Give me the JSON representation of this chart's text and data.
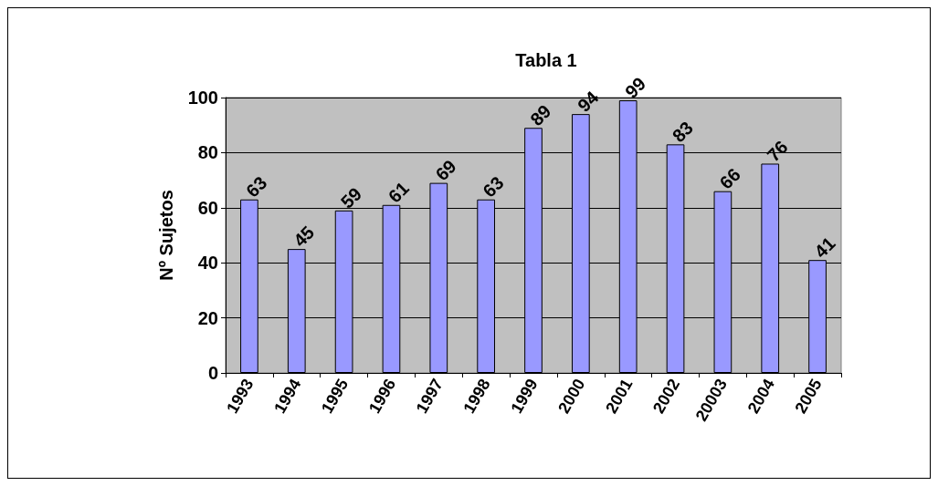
{
  "chart_data": {
    "type": "bar",
    "title": "Tabla 1",
    "ylabel": "Nº Sujetos",
    "categories": [
      "1993",
      "1994",
      "1995",
      "1996",
      "1997",
      "1998",
      "1999",
      "2000",
      "2001",
      "2002",
      "20003",
      "2004",
      "2005"
    ],
    "values": [
      63,
      45,
      59,
      61,
      69,
      63,
      89,
      94,
      99,
      83,
      66,
      76,
      41
    ],
    "color": "#9999ff",
    "ylim": [
      0,
      100
    ],
    "yticks": [
      0,
      20,
      40,
      60,
      80,
      100
    ],
    "grid": "y",
    "data_labels": true
  }
}
